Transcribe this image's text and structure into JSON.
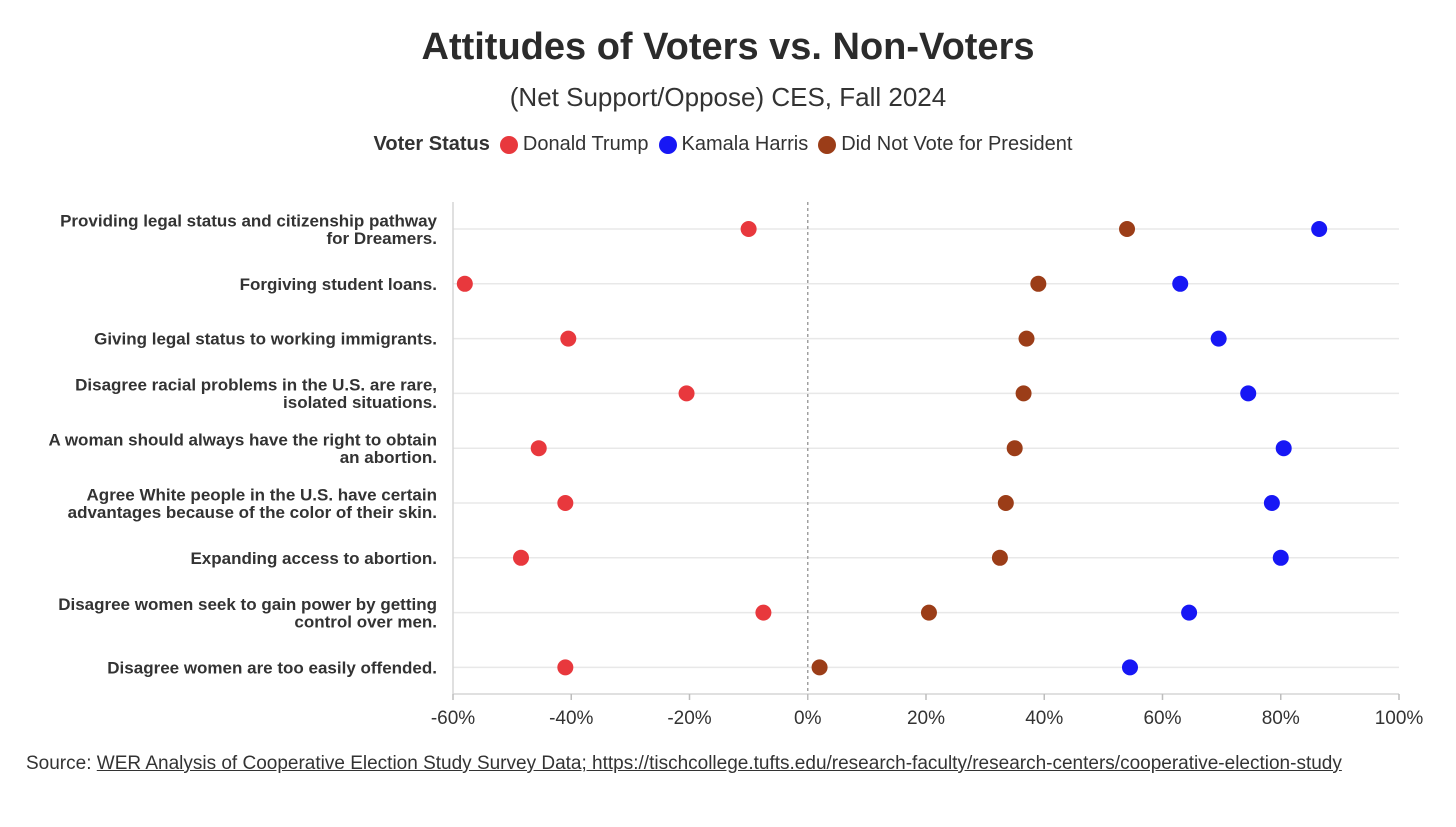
{
  "chart_data": {
    "type": "scatter",
    "title": "Attitudes of Voters vs. Non-Voters",
    "subtitle": "(Net Support/Oppose) CES, Fall 2024",
    "legend_title": "Voter Status",
    "legend_position": "top",
    "categories": [
      [
        "Providing legal status and citizenship pathway",
        "for Dreamers."
      ],
      [
        "Forgiving student loans."
      ],
      [
        "Giving legal status to working immigrants."
      ],
      [
        "Disagree racial problems in the U.S. are rare,",
        "isolated situations."
      ],
      [
        "A woman should always have the right to obtain",
        "an abortion."
      ],
      [
        "Agree White people in the U.S. have certain",
        "advantages because of the color of their skin."
      ],
      [
        "Expanding access to abortion."
      ],
      [
        "Disagree women seek to gain power by getting",
        "control over men."
      ],
      [
        "Disagree women are too easily offended."
      ]
    ],
    "series": [
      {
        "name": "Donald Trump",
        "color": "#e8383d",
        "values": [
          -10,
          -58,
          -40.5,
          -20.5,
          -45.5,
          -41,
          -48.5,
          -7.5,
          -41
        ]
      },
      {
        "name": "Kamala Harris",
        "color": "#1717f5",
        "values": [
          86.5,
          63,
          69.5,
          74.5,
          80.5,
          78.5,
          80,
          64.5,
          54.5
        ]
      },
      {
        "name": "Did Not Vote for President",
        "color": "#9b3d18",
        "values": [
          54,
          39,
          37,
          36.5,
          35,
          33.5,
          32.5,
          20.5,
          2
        ]
      }
    ],
    "xlim": [
      -60,
      100
    ],
    "xticks": [
      -60,
      -40,
      -20,
      0,
      20,
      40,
      60,
      80,
      100
    ],
    "tick_labels": [
      "-60%",
      "-40%",
      "-20%",
      "0%",
      "20%",
      "40%",
      "60%",
      "80%",
      "100%"
    ],
    "reference_line": 0,
    "grid": true,
    "xlabel": "",
    "ylabel": ""
  },
  "source": {
    "prefix": "Source: ",
    "link_text": "WER Analysis of Cooperative Election Study Survey Data; https://tischcollege.tufts.edu/research-faculty/research-centers/cooperative-election-study"
  }
}
